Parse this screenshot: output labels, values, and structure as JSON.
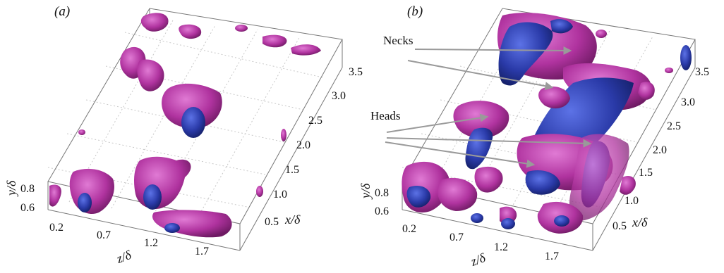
{
  "figure": {
    "panels": [
      {
        "label": "(a)",
        "x_ticks": [
          "0.5",
          "1.0",
          "1.5",
          "2.0",
          "2.5",
          "3.0",
          "3.5"
        ],
        "z_ticks": [
          "0.2",
          "0.7",
          "1.2",
          "1.7"
        ],
        "y_ticks": [
          "0.8",
          "0.6"
        ],
        "x_label": "x/δ",
        "z_label": "z/δ",
        "y_label": "y/δ"
      },
      {
        "label": "(b)",
        "x_ticks": [
          "0.5",
          "1.0",
          "1.5",
          "2.0",
          "2.5",
          "3.0",
          "3.5"
        ],
        "z_ticks": [
          "0.2",
          "0.7",
          "1.2",
          "1.7"
        ],
        "y_ticks": [
          "0.8",
          "0.6"
        ],
        "x_label": "x/δ",
        "z_label": "z/δ",
        "y_label": "y/δ",
        "annotations": {
          "necks": "Necks",
          "heads": "Heads"
        }
      }
    ],
    "colors": {
      "magenta": "#b0339f",
      "blue": "#2a3aa8",
      "box": "#777777",
      "grid": "#c8c8c8",
      "arrow": "#9a9a9a"
    }
  }
}
